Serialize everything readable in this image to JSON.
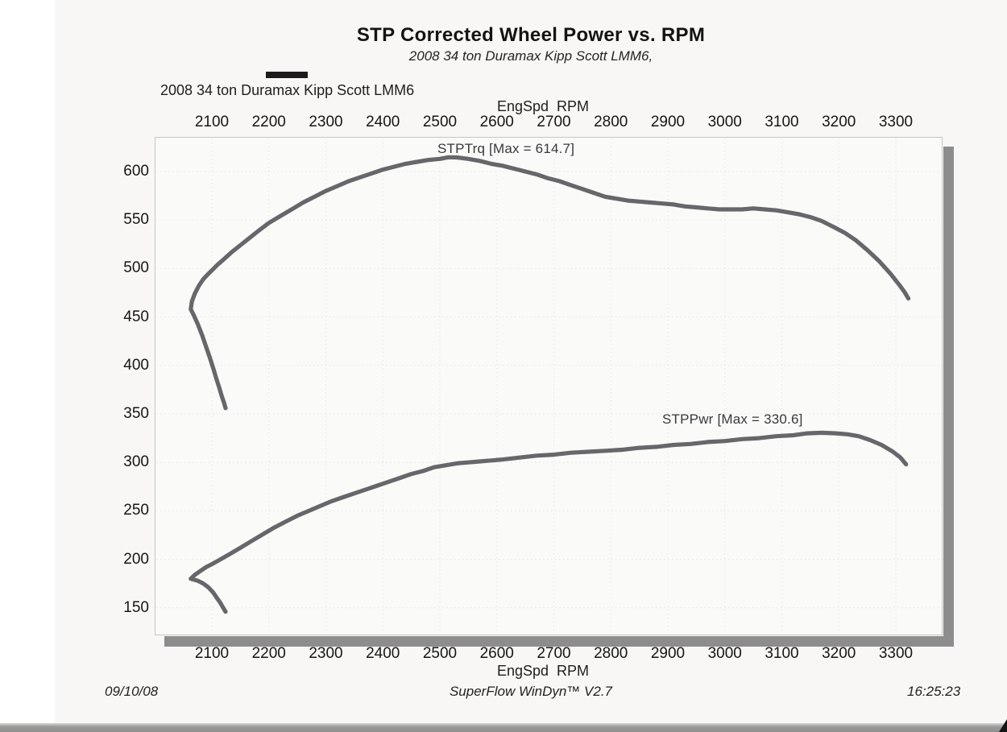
{
  "page": {
    "title": "STP Corrected Wheel Power vs. RPM",
    "subtitle": "2008 34 ton Duramax Kipp Scott LMM6,",
    "legend": {
      "label": "2008 34 ton Duramax Kipp Scott LMM6",
      "swatch_color": "#1b1b1b"
    },
    "footer": {
      "date": "09/10/08",
      "software": "SuperFlow WinDyn™ V2.7",
      "time": "16:25:23"
    }
  },
  "chart_data": {
    "type": "line",
    "title": "STP Corrected Wheel Power vs. RPM",
    "subtitle": "2008 34 ton Duramax Kipp Scott LMM6,",
    "xlabel_top": "EngSpd  RPM",
    "xlabel_bottom": "EngSpd  RPM",
    "x_ticks": [
      2100,
      2200,
      2300,
      2400,
      2500,
      2600,
      2700,
      2800,
      2900,
      3000,
      3100,
      3200,
      3300
    ],
    "y_ticks": [
      600,
      550,
      500,
      450,
      400,
      350,
      300,
      250,
      200,
      150
    ],
    "xlim": [
      2000,
      3385
    ],
    "ylim": [
      120,
      640
    ],
    "grid": "dotted",
    "legend_position": "top-left",
    "line_color": "#16161d",
    "grid_color": "#d9d9d9",
    "series": [
      {
        "name": "STPTrq",
        "annotation": "STPTrq [Max = 614.7]",
        "max": 614.7,
        "points": [
          [
            2124,
            356
          ],
          [
            2121,
            362
          ],
          [
            2117,
            369
          ],
          [
            2113,
            377
          ],
          [
            2108,
            386
          ],
          [
            2103,
            396
          ],
          [
            2097,
            407
          ],
          [
            2090,
            419
          ],
          [
            2083,
            431
          ],
          [
            2075,
            443
          ],
          [
            2068,
            452
          ],
          [
            2063,
            458
          ],
          [
            2065,
            466
          ],
          [
            2070,
            474
          ],
          [
            2077,
            482
          ],
          [
            2085,
            489
          ],
          [
            2093,
            494
          ],
          [
            2100,
            498
          ],
          [
            2110,
            504
          ],
          [
            2120,
            509
          ],
          [
            2135,
            517
          ],
          [
            2150,
            524
          ],
          [
            2165,
            531
          ],
          [
            2180,
            538
          ],
          [
            2200,
            547
          ],
          [
            2220,
            554
          ],
          [
            2240,
            561
          ],
          [
            2260,
            568
          ],
          [
            2280,
            574
          ],
          [
            2300,
            580
          ],
          [
            2320,
            585
          ],
          [
            2340,
            590
          ],
          [
            2360,
            594
          ],
          [
            2380,
            598
          ],
          [
            2400,
            602
          ],
          [
            2420,
            605
          ],
          [
            2440,
            608
          ],
          [
            2460,
            610
          ],
          [
            2480,
            612
          ],
          [
            2500,
            613
          ],
          [
            2515,
            614.7
          ],
          [
            2530,
            614.5
          ],
          [
            2550,
            613
          ],
          [
            2570,
            611
          ],
          [
            2590,
            608
          ],
          [
            2610,
            606
          ],
          [
            2630,
            603
          ],
          [
            2650,
            600
          ],
          [
            2670,
            597
          ],
          [
            2690,
            593
          ],
          [
            2710,
            590
          ],
          [
            2730,
            586
          ],
          [
            2750,
            582
          ],
          [
            2770,
            578
          ],
          [
            2790,
            574
          ],
          [
            2810,
            572
          ],
          [
            2830,
            570
          ],
          [
            2850,
            569
          ],
          [
            2870,
            568
          ],
          [
            2890,
            567
          ],
          [
            2910,
            566
          ],
          [
            2930,
            564
          ],
          [
            2950,
            563
          ],
          [
            2970,
            562
          ],
          [
            2990,
            561
          ],
          [
            3010,
            561
          ],
          [
            3030,
            561
          ],
          [
            3050,
            562
          ],
          [
            3070,
            561
          ],
          [
            3090,
            560
          ],
          [
            3110,
            558
          ],
          [
            3130,
            556
          ],
          [
            3150,
            553
          ],
          [
            3170,
            549
          ],
          [
            3190,
            543
          ],
          [
            3210,
            537
          ],
          [
            3230,
            529
          ],
          [
            3250,
            519
          ],
          [
            3270,
            508
          ],
          [
            3290,
            495
          ],
          [
            3305,
            484
          ],
          [
            3315,
            476
          ],
          [
            3322,
            469
          ]
        ]
      },
      {
        "name": "STPPwr",
        "annotation": "STPPwr [Max = 330.6]",
        "max": 330.6,
        "points": [
          [
            2124,
            146
          ],
          [
            2120,
            150
          ],
          [
            2115,
            155
          ],
          [
            2109,
            160
          ],
          [
            2102,
            166
          ],
          [
            2094,
            171
          ],
          [
            2085,
            175
          ],
          [
            2075,
            178
          ],
          [
            2063,
            180
          ],
          [
            2070,
            184
          ],
          [
            2080,
            188
          ],
          [
            2090,
            192
          ],
          [
            2100,
            195
          ],
          [
            2115,
            200
          ],
          [
            2130,
            205
          ],
          [
            2150,
            212
          ],
          [
            2170,
            219
          ],
          [
            2190,
            226
          ],
          [
            2210,
            233
          ],
          [
            2230,
            239
          ],
          [
            2250,
            245
          ],
          [
            2270,
            250
          ],
          [
            2290,
            255
          ],
          [
            2310,
            260
          ],
          [
            2330,
            264
          ],
          [
            2350,
            268
          ],
          [
            2370,
            272
          ],
          [
            2390,
            276
          ],
          [
            2410,
            280
          ],
          [
            2430,
            284
          ],
          [
            2450,
            288
          ],
          [
            2470,
            291
          ],
          [
            2490,
            295
          ],
          [
            2510,
            297
          ],
          [
            2530,
            299
          ],
          [
            2550,
            300
          ],
          [
            2570,
            301
          ],
          [
            2590,
            302
          ],
          [
            2610,
            303
          ],
          [
            2640,
            305
          ],
          [
            2670,
            307
          ],
          [
            2700,
            308
          ],
          [
            2730,
            310
          ],
          [
            2760,
            311
          ],
          [
            2790,
            312
          ],
          [
            2820,
            313
          ],
          [
            2850,
            315
          ],
          [
            2880,
            316
          ],
          [
            2910,
            318
          ],
          [
            2940,
            319
          ],
          [
            2970,
            321
          ],
          [
            3000,
            322
          ],
          [
            3030,
            324
          ],
          [
            3060,
            325
          ],
          [
            3090,
            327
          ],
          [
            3120,
            328
          ],
          [
            3145,
            330
          ],
          [
            3170,
            330.6
          ],
          [
            3195,
            330
          ],
          [
            3215,
            329
          ],
          [
            3235,
            327
          ],
          [
            3255,
            323
          ],
          [
            3275,
            318
          ],
          [
            3295,
            311
          ],
          [
            3308,
            305
          ],
          [
            3318,
            298
          ]
        ]
      }
    ]
  }
}
